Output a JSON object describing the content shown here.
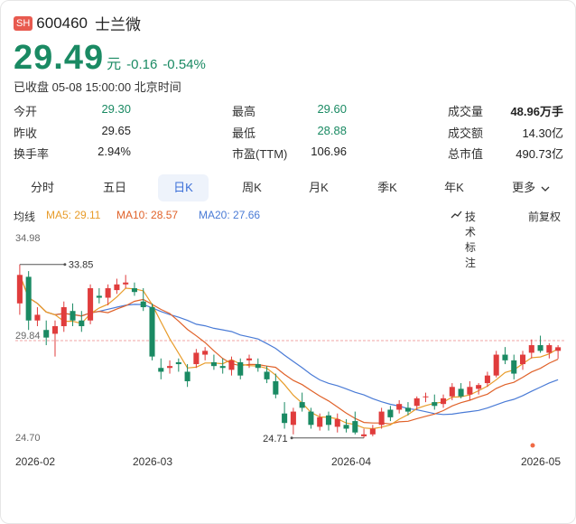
{
  "header": {
    "exchange": "SH",
    "code": "600460",
    "name": "士兰微"
  },
  "quote": {
    "price": "29.49",
    "unit": "元",
    "change": "-0.16",
    "change_pct": "-0.54%",
    "status": "已收盘 05-08 15:00:00 北京时间"
  },
  "stats": [
    [
      {
        "label": "今开",
        "value": "29.30",
        "tone": "down"
      },
      {
        "label": "最高",
        "value": "29.60",
        "tone": "down"
      },
      {
        "label": "成交量",
        "value": "48.96万手",
        "tone": "bold"
      }
    ],
    [
      {
        "label": "昨收",
        "value": "29.65",
        "tone": ""
      },
      {
        "label": "最低",
        "value": "28.88",
        "tone": "down"
      },
      {
        "label": "成交额",
        "value": "14.30亿",
        "tone": ""
      }
    ],
    [
      {
        "label": "换手率",
        "value": "2.94%",
        "tone": ""
      },
      {
        "label": "市盈(TTM)",
        "value": "106.96",
        "tone": ""
      },
      {
        "label": "总市值",
        "value": "490.73亿",
        "tone": ""
      }
    ]
  ],
  "tabs": [
    "分时",
    "五日",
    "日K",
    "周K",
    "月K",
    "季K",
    "年K",
    "更多"
  ],
  "active_tab": "日K",
  "ma": {
    "label": "均线",
    "ma5": "MA5: 29.11",
    "ma10": "MA10: 28.57",
    "ma20": "MA20: 27.66",
    "tech": "技术标注",
    "adjust": "前复权"
  },
  "colors": {
    "up": "#e03c3c",
    "down": "#1a8a63",
    "ma5": "#e89c2a",
    "ma10": "#e0622a",
    "ma20": "#4a7bd6",
    "accent": "#3b6fd8"
  },
  "icons": {
    "tech": "chart-tools-icon",
    "more": "chevron-down-icon"
  },
  "chart_data": {
    "type": "candlestick",
    "y_labels": [
      "34.98",
      "29.84",
      "24.70"
    ],
    "ylim": [
      24.7,
      34.98
    ],
    "reference_line": 29.84,
    "x_labels": [
      "2026-02",
      "2026-03",
      "2026-04",
      "2026-05"
    ],
    "max_label": "33.85",
    "min_label": "24.71",
    "candles": [
      [
        31.8,
        33.85,
        31.2,
        33.3
      ],
      [
        33.2,
        33.5,
        30.4,
        30.9
      ],
      [
        30.9,
        31.6,
        30.6,
        31.2
      ],
      [
        30.4,
        30.9,
        29.6,
        30.0
      ],
      [
        30.2,
        30.9,
        29.0,
        30.6
      ],
      [
        30.6,
        31.9,
        30.3,
        31.6
      ],
      [
        31.4,
        31.8,
        30.6,
        30.9
      ],
      [
        30.9,
        31.4,
        30.3,
        30.6
      ],
      [
        30.9,
        32.8,
        30.7,
        32.6
      ],
      [
        32.2,
        32.6,
        31.8,
        32.1
      ],
      [
        32.1,
        32.8,
        31.7,
        32.6
      ],
      [
        32.5,
        33.1,
        32.3,
        32.8
      ],
      [
        32.8,
        33.3,
        32.6,
        32.9
      ],
      [
        32.6,
        32.9,
        32.2,
        32.4
      ],
      [
        31.9,
        32.6,
        31.4,
        31.6
      ],
      [
        31.6,
        31.8,
        28.8,
        29.0
      ],
      [
        28.4,
        28.9,
        27.8,
        28.2
      ],
      [
        28.4,
        28.8,
        28.1,
        28.5
      ],
      [
        28.7,
        28.9,
        28.2,
        28.6
      ],
      [
        28.2,
        28.6,
        27.4,
        27.7
      ],
      [
        28.6,
        29.4,
        28.4,
        29.2
      ],
      [
        29.1,
        29.5,
        28.8,
        29.3
      ],
      [
        28.7,
        29.1,
        28.3,
        28.5
      ],
      [
        28.5,
        28.9,
        28.1,
        28.4
      ],
      [
        28.3,
        29.0,
        28.0,
        28.8
      ],
      [
        28.7,
        28.9,
        27.8,
        28.0
      ],
      [
        28.8,
        29.1,
        28.4,
        28.9
      ],
      [
        28.6,
        28.9,
        28.2,
        28.4
      ],
      [
        28.2,
        28.5,
        27.6,
        27.8
      ],
      [
        27.7,
        28.1,
        26.8,
        27.0
      ],
      [
        26.0,
        26.6,
        25.2,
        25.5
      ],
      [
        25.4,
        26.3,
        24.9,
        26.1
      ],
      [
        26.6,
        27.1,
        26.1,
        26.3
      ],
      [
        26.1,
        26.3,
        25.2,
        25.4
      ],
      [
        25.3,
        26.0,
        25.1,
        25.8
      ],
      [
        25.9,
        26.1,
        25.1,
        25.4
      ],
      [
        25.3,
        26.0,
        25.0,
        25.7
      ],
      [
        25.4,
        25.7,
        25.0,
        25.2
      ],
      [
        25.6,
        26.1,
        24.9,
        25.0
      ],
      [
        24.8,
        25.2,
        24.71,
        24.9
      ],
      [
        24.9,
        25.4,
        24.8,
        25.2
      ],
      [
        25.4,
        26.3,
        25.2,
        26.1
      ],
      [
        26.2,
        26.4,
        25.6,
        25.8
      ],
      [
        26.2,
        26.7,
        26.0,
        26.5
      ],
      [
        26.3,
        26.6,
        25.9,
        26.1
      ],
      [
        26.4,
        26.9,
        26.2,
        26.8
      ],
      [
        26.9,
        27.1,
        26.6,
        26.9
      ],
      [
        26.6,
        27.0,
        26.2,
        26.4
      ],
      [
        26.5,
        27.0,
        26.3,
        26.8
      ],
      [
        26.9,
        27.6,
        26.7,
        27.4
      ],
      [
        27.3,
        27.6,
        26.8,
        26.9
      ],
      [
        27.0,
        27.7,
        26.7,
        27.4
      ],
      [
        27.3,
        27.6,
        27.0,
        27.5
      ],
      [
        27.6,
        28.2,
        27.4,
        28.0
      ],
      [
        28.0,
        29.3,
        27.9,
        29.1
      ],
      [
        29.1,
        29.5,
        28.6,
        28.8
      ],
      [
        28.8,
        29.1,
        27.8,
        28.1
      ],
      [
        28.6,
        29.3,
        28.3,
        29.1
      ],
      [
        29.2,
        29.9,
        28.9,
        29.6
      ],
      [
        29.6,
        30.1,
        29.2,
        29.3
      ],
      [
        29.2,
        29.7,
        28.9,
        29.6
      ],
      [
        29.3,
        29.6,
        28.88,
        29.49
      ]
    ]
  }
}
